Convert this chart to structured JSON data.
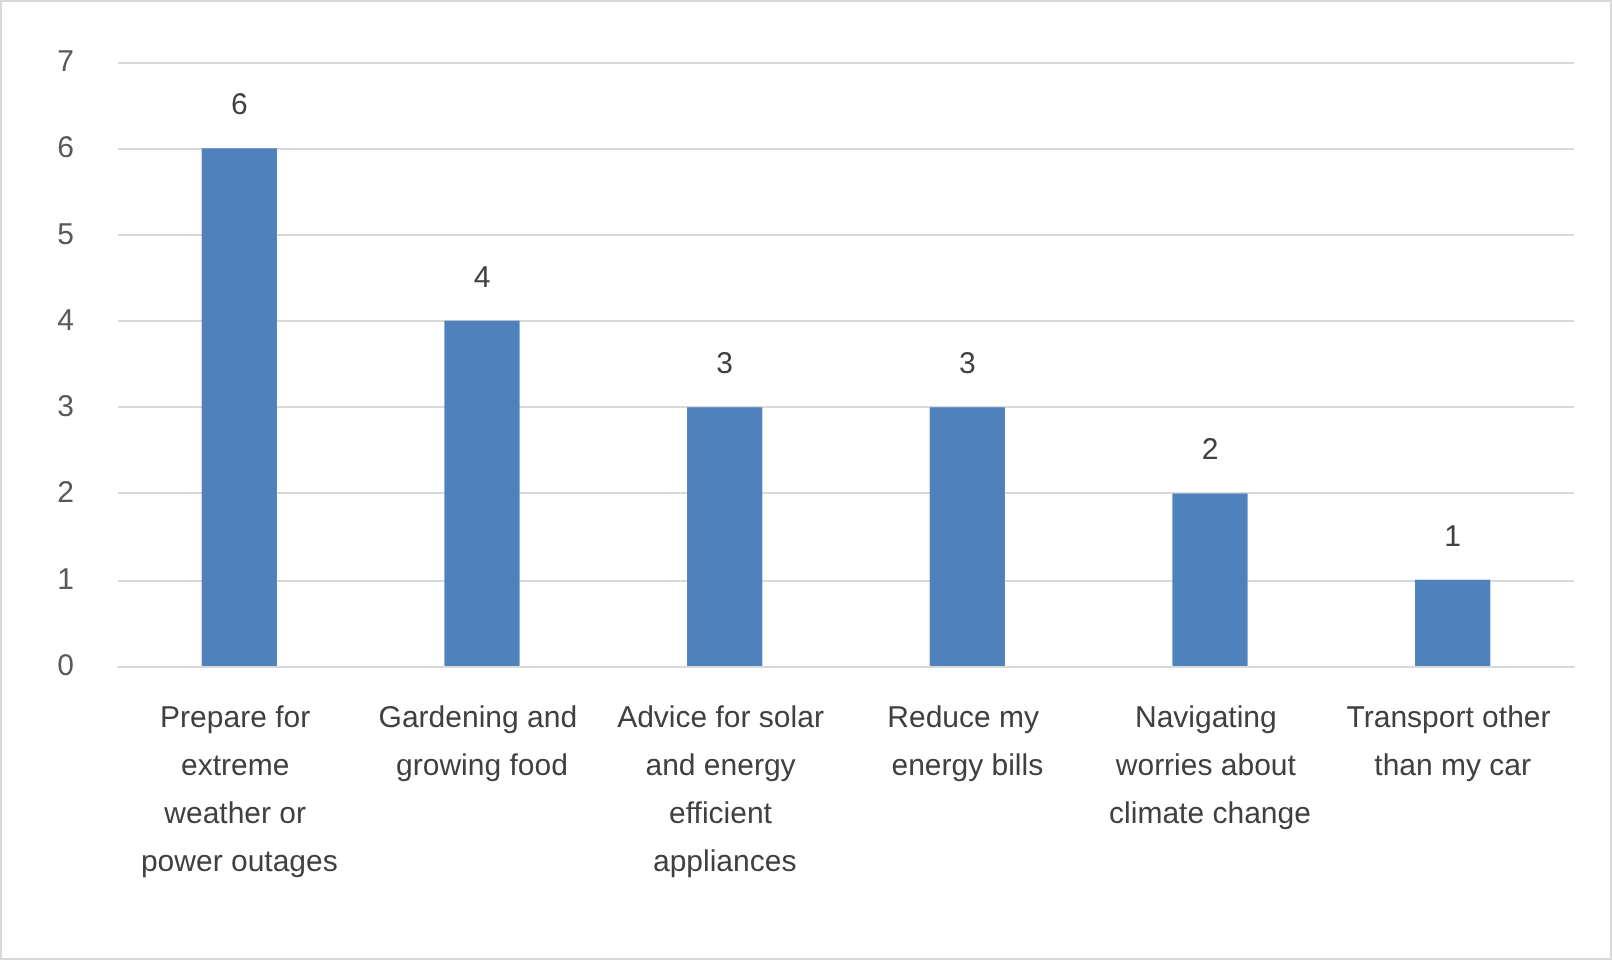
{
  "chart_data": {
    "type": "bar",
    "categories": [
      "Prepare for extreme weather or power outages",
      "Gardening and growing food",
      "Advice for solar and energy efficient appliances",
      "Reduce my energy bills",
      "Navigating worries about climate change",
      "Transport other than my car"
    ],
    "values": [
      6,
      4,
      3,
      3,
      2,
      1
    ],
    "color": "#4f81bd",
    "ylim": [
      0,
      7
    ],
    "yticks": [
      0,
      1,
      2,
      3,
      4,
      5,
      6,
      7
    ],
    "grid": "y",
    "data_labels": true
  }
}
